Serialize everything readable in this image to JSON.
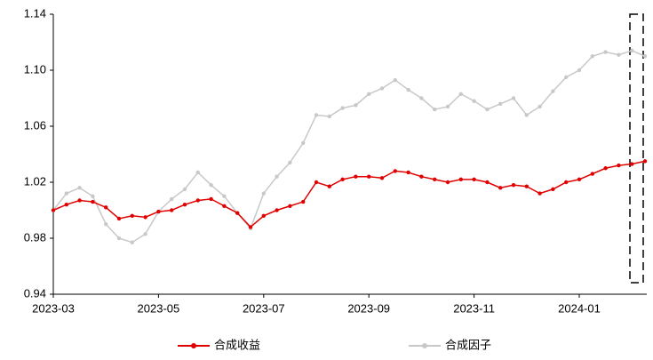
{
  "chart_data": {
    "type": "line",
    "categories": [
      "2023-03",
      null,
      null,
      null,
      null,
      null,
      null,
      null,
      "2023-05",
      null,
      null,
      null,
      null,
      null,
      null,
      null,
      "2023-07",
      null,
      null,
      null,
      null,
      null,
      null,
      null,
      "2023-09",
      null,
      null,
      null,
      null,
      null,
      null,
      null,
      "2023-11",
      null,
      null,
      null,
      null,
      null,
      null,
      null,
      "2024-01",
      null,
      null,
      null,
      null,
      null
    ],
    "series": [
      {
        "name": "合成收益",
        "color": "#e00000",
        "values": [
          1.0,
          1.004,
          1.007,
          1.006,
          1.002,
          0.994,
          0.996,
          0.995,
          0.999,
          1.0,
          1.004,
          1.007,
          1.008,
          1.003,
          0.998,
          0.988,
          0.996,
          1.0,
          1.003,
          1.006,
          1.02,
          1.017,
          1.022,
          1.024,
          1.024,
          1.023,
          1.028,
          1.027,
          1.024,
          1.022,
          1.02,
          1.022,
          1.022,
          1.02,
          1.016,
          1.018,
          1.017,
          1.012,
          1.015,
          1.02,
          1.022,
          1.026,
          1.03,
          1.032,
          1.033,
          1.035
        ]
      },
      {
        "name": "合成因子",
        "color": "#c8c8c8",
        "values": [
          1.0,
          1.012,
          1.016,
          1.01,
          0.99,
          0.98,
          0.977,
          0.983,
          0.999,
          1.008,
          1.015,
          1.027,
          1.018,
          1.01,
          0.998,
          0.987,
          1.012,
          1.024,
          1.034,
          1.048,
          1.068,
          1.067,
          1.073,
          1.075,
          1.083,
          1.087,
          1.093,
          1.086,
          1.08,
          1.072,
          1.074,
          1.083,
          1.078,
          1.072,
          1.076,
          1.08,
          1.068,
          1.074,
          1.085,
          1.095,
          1.1,
          1.11,
          1.113,
          1.111,
          1.114,
          1.11
        ]
      }
    ],
    "ylim": [
      0.94,
      1.14
    ],
    "yticks": [
      0.94,
      0.98,
      1.02,
      1.06,
      {
        "value": 1.1,
        "label": "1.10"
      },
      1.14
    ],
    "grid": false,
    "legend": "bottom"
  }
}
